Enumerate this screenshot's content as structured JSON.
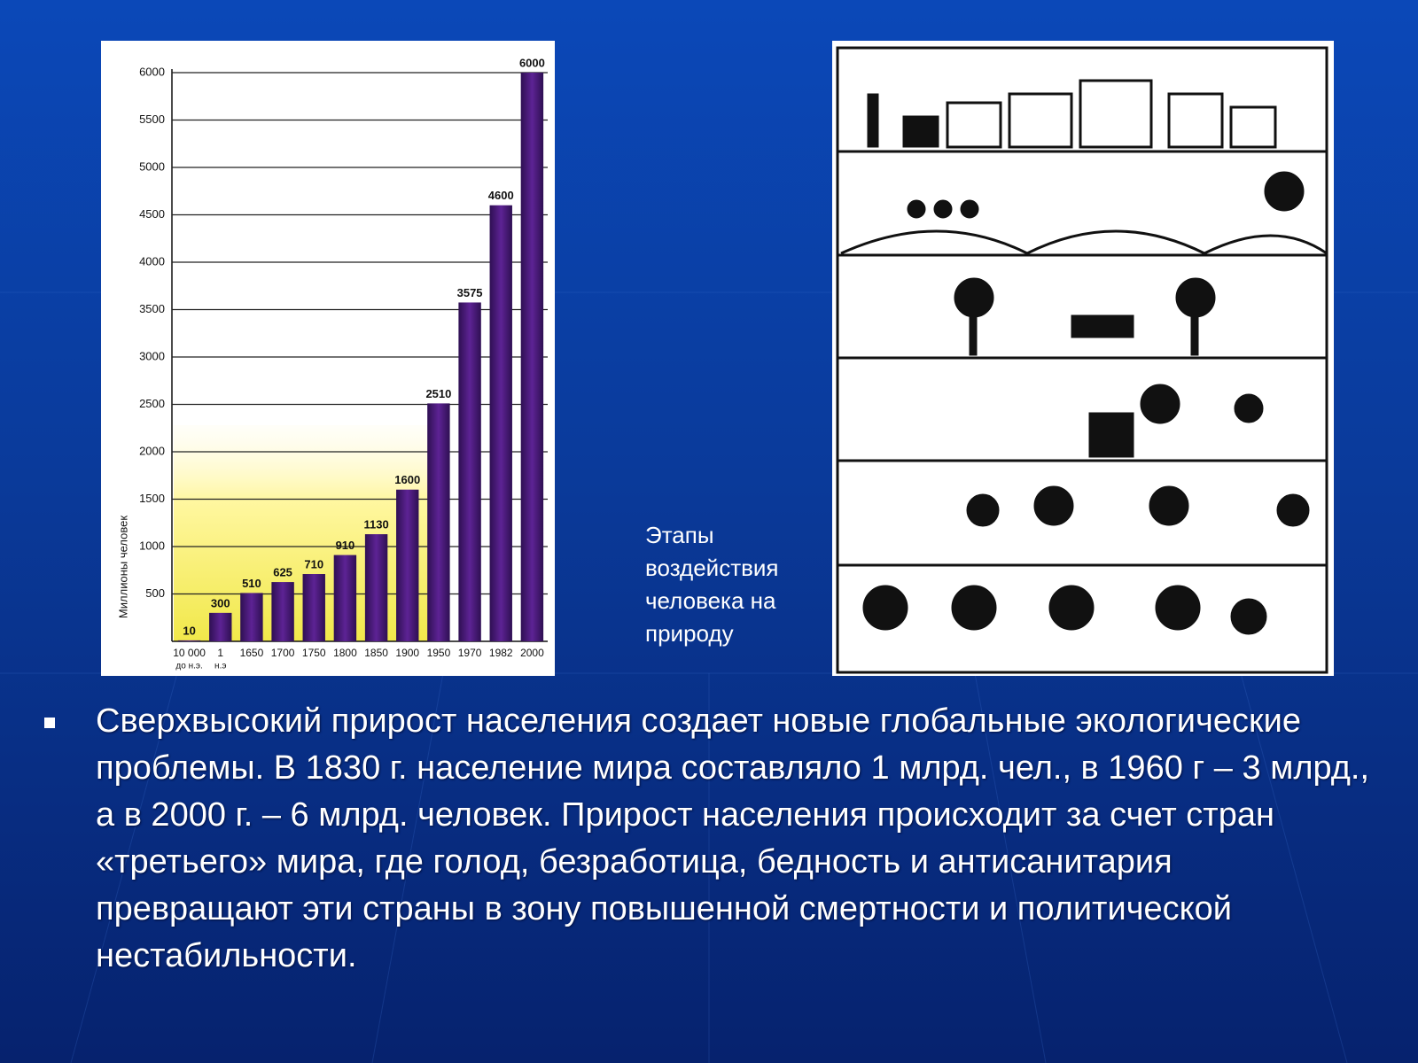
{
  "chart_data": {
    "type": "bar",
    "ylabel": "Миллионы человек",
    "categories": [
      "10 000",
      "1",
      "1650",
      "1700",
      "1750",
      "1800",
      "1850",
      "1900",
      "1950",
      "1970",
      "1982",
      "2000"
    ],
    "era_labels": [
      "до н.э.",
      "н.э"
    ],
    "values": [
      10,
      300,
      510,
      625,
      710,
      910,
      1130,
      1600,
      2510,
      3575,
      4600,
      6000
    ],
    "color": "#4a1877",
    "ylim": [
      0,
      6000
    ],
    "yticks": [
      500,
      1000,
      1500,
      2000,
      2500,
      3000,
      3500,
      4000,
      4500,
      5000,
      5500,
      6000
    ],
    "grid": true
  },
  "caption": "Этапы воздействия человека на природу",
  "bullet": "Сверхвысокий прирост населения создает новые глобальные экологические проблемы. В 1830 г. население мира составляло 1 млрд. чел., в 1960 г – 3 млрд., а в 2000 г. – 6 млрд. человек. Прирост населения происходит за счет стран «третьего» мира, где голод, безработица, бедность и антисанитария превращают эти страны в зону повышенной смертности и политической нестабильности."
}
